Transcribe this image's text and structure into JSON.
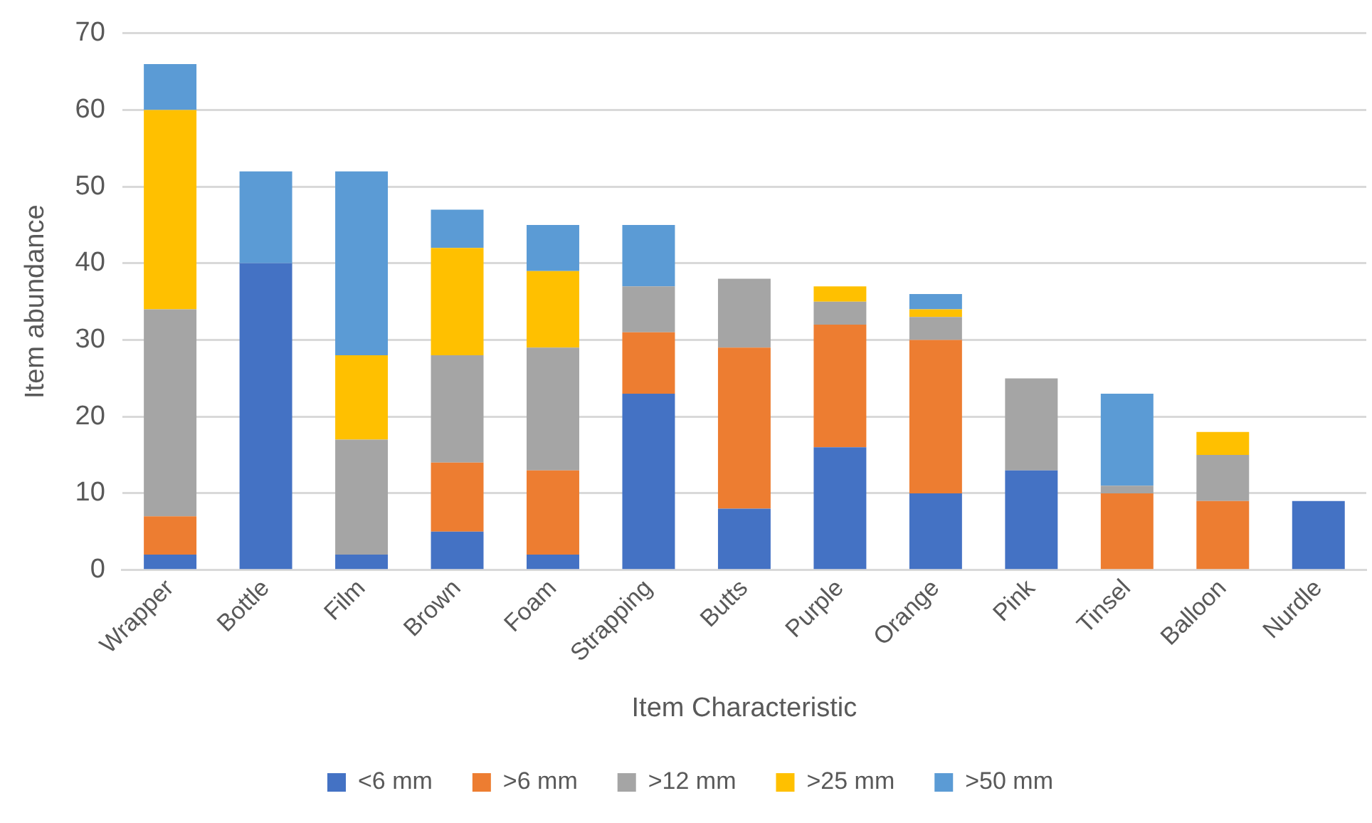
{
  "chart_data": {
    "type": "bar",
    "stacked": true,
    "xlabel": "Item Characteristic",
    "ylabel": "Item abundance",
    "categories": [
      "Wrapper",
      "Bottle",
      "Film",
      "Brown",
      "Foam",
      "Strapping",
      "Butts",
      "Purple",
      "Orange",
      "Pink",
      "Tinsel",
      "Balloon",
      "Nurdle"
    ],
    "series": [
      {
        "name": "<6 mm",
        "color": "#4472c4",
        "values": [
          2,
          40,
          2,
          5,
          2,
          23,
          8,
          16,
          10,
          13,
          0,
          0,
          9
        ]
      },
      {
        "name": ">6 mm",
        "color": "#ed7d31",
        "values": [
          5,
          0,
          0,
          9,
          11,
          8,
          21,
          16,
          20,
          0,
          10,
          9,
          0
        ]
      },
      {
        "name": ">12 mm",
        "color": "#a5a5a5",
        "values": [
          27,
          0,
          15,
          14,
          16,
          6,
          9,
          3,
          3,
          12,
          1,
          6,
          0
        ]
      },
      {
        "name": ">25 mm",
        "color": "#ffc000",
        "values": [
          26,
          0,
          11,
          14,
          10,
          0,
          0,
          2,
          1,
          0,
          0,
          3,
          0
        ]
      },
      {
        "name": ">50 mm",
        "color": "#5b9bd5",
        "values": [
          6,
          12,
          24,
          5,
          6,
          8,
          0,
          0,
          2,
          0,
          12,
          0,
          0
        ]
      }
    ],
    "ylim": [
      0,
      70
    ],
    "yticks": [
      0,
      10,
      20,
      30,
      40,
      50,
      60,
      70
    ],
    "grid": "y",
    "legend": "bottom"
  }
}
